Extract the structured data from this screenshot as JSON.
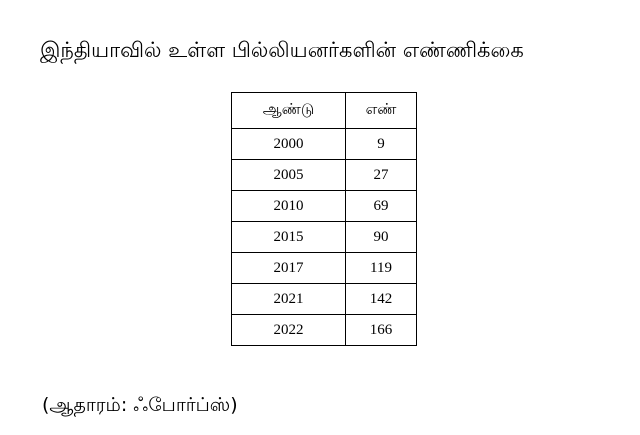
{
  "title": "இந்தியாவில் உள்ள பில்லியனர்களின் எண்ணிக்கை",
  "table": {
    "headers": [
      "ஆண்டு",
      "எண்"
    ],
    "rows": [
      [
        "2000",
        "9"
      ],
      [
        "2005",
        "27"
      ],
      [
        "2010",
        "69"
      ],
      [
        "2015",
        "90"
      ],
      [
        "2017",
        "119"
      ],
      [
        "2021",
        "142"
      ],
      [
        "2022",
        "166"
      ]
    ]
  },
  "source": "(ஆதாரம்: ஃபோர்ப்ஸ்)"
}
